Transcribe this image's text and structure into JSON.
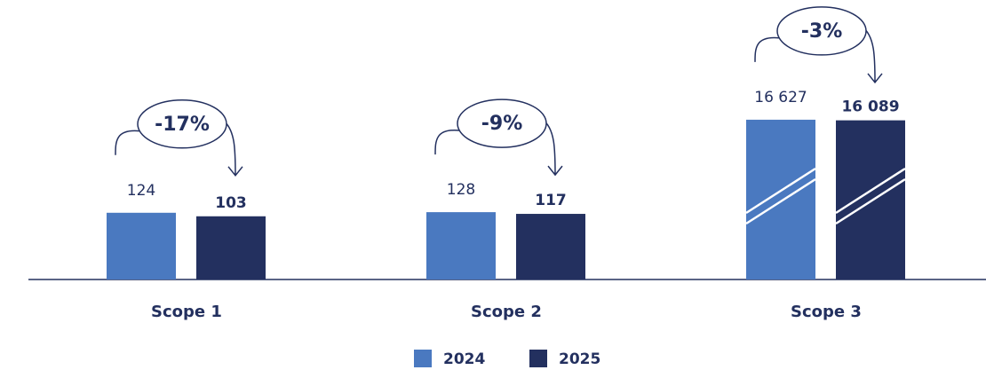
{
  "chart_data": {
    "type": "bar",
    "categories": [
      "Scope 1",
      "Scope 2",
      "Scope 3"
    ],
    "series": [
      {
        "name": "2024",
        "color": "#4a79c0",
        "values": [
          124,
          128,
          16627
        ],
        "value_labels": [
          "124",
          "128",
          "16 627"
        ]
      },
      {
        "name": "2025",
        "color": "#23305f",
        "values": [
          103,
          117,
          16089
        ],
        "value_labels": [
          "103",
          "117",
          "16 089"
        ]
      }
    ],
    "annotations": [
      "-17%",
      "-9%",
      "-3%"
    ]
  }
}
